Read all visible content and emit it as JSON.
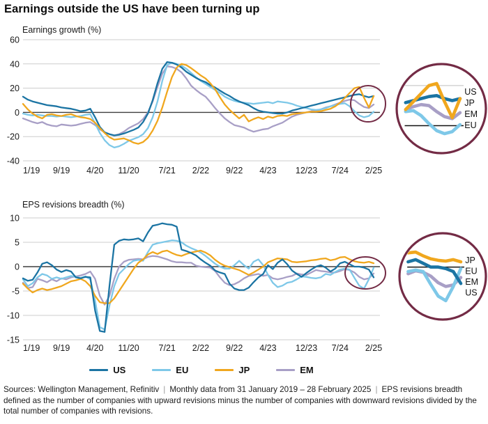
{
  "title": "Earnings outside the US have been turning up",
  "colors": {
    "us": "#1B74A3",
    "eu": "#7EC8E8",
    "jp": "#F0A71E",
    "em": "#A89FC6",
    "annotation_circle": "#732B45",
    "gridline": "#CCCCCC",
    "zero_line": "#3D3D3D",
    "text": "#1A1A1A"
  },
  "legend": {
    "items": [
      {
        "label": "US",
        "color": "#1B74A3"
      },
      {
        "label": "EU",
        "color": "#7EC8E8"
      },
      {
        "label": "JP",
        "color": "#F0A71E"
      },
      {
        "label": "EM",
        "color": "#A89FC6"
      }
    ]
  },
  "footer": {
    "sources": "Sources: Wellington Management, Refinitiv",
    "separator": "|",
    "period": "Monthly data from 31 January 2019 – 28 February 2025",
    "definition": "EPS revisions breadth defined as the number of companies with upward revisions minus the number of companies with downward revisions divided by the total number of companies with revisions."
  },
  "chart_data": [
    {
      "type": "line",
      "title": "Earnings growth (%)",
      "x_unit": "monthly, 1/19 through 2/25",
      "x_tick_labels": [
        "1/19",
        "9/19",
        "4/20",
        "11/20",
        "7/21",
        "2/22",
        "9/22",
        "4/23",
        "12/23",
        "7/24",
        "2/25"
      ],
      "x_tick_indices": [
        0,
        8,
        15,
        22,
        30,
        37,
        44,
        51,
        59,
        66,
        73
      ],
      "ylim": [
        -40,
        60
      ],
      "yticks": [
        60,
        40,
        20,
        0,
        -20,
        -40
      ],
      "grid": true,
      "legend_position": "shared-bottom",
      "end_label_order": [
        "US",
        "JP",
        "EM",
        "EU"
      ],
      "series": [
        {
          "name": "US",
          "color": "#1B74A3",
          "values": [
            13,
            10.5,
            9,
            8,
            7,
            6,
            5.5,
            5,
            4,
            3.5,
            3,
            2,
            1,
            1.5,
            3,
            -4,
            -12,
            -16.5,
            -18,
            -19,
            -18.5,
            -17.5,
            -16,
            -14.5,
            -12.5,
            -8,
            -1,
            10,
            24,
            36,
            41.5,
            41,
            39.5,
            37,
            33.5,
            31,
            28.5,
            26.5,
            25,
            22.5,
            20.5,
            18,
            15.5,
            13.5,
            11,
            9,
            7.5,
            6,
            3.5,
            1.5,
            0.5,
            0,
            -0.5,
            -1,
            -1,
            0,
            1.5,
            2.5,
            3.5,
            4.5,
            5.5,
            6.5,
            7.5,
            8.5,
            9.5,
            10.5,
            11.5,
            12.5,
            13.5,
            14.5,
            15,
            13.5,
            12.5,
            13.5
          ]
        },
        {
          "name": "EU",
          "color": "#7EC8E8",
          "values": [
            -1,
            -2,
            -2.5,
            -2,
            -2.5,
            -3,
            -3,
            -3.5,
            -3,
            -3.5,
            -4,
            -3.5,
            -3,
            -2,
            -1.5,
            -9,
            -17,
            -23,
            -27,
            -29,
            -28,
            -26,
            -23.5,
            -22,
            -20.5,
            -18,
            -13,
            -4,
            9,
            26,
            39,
            41,
            40,
            38.5,
            36,
            32.5,
            29,
            26,
            23.5,
            21,
            18.5,
            16,
            13,
            11,
            9.5,
            8.5,
            8,
            7.5,
            7,
            7.5,
            8,
            8.5,
            7.5,
            9,
            8.5,
            8,
            7,
            5.5,
            4.5,
            3.5,
            2.5,
            2,
            2.5,
            3.5,
            5,
            6,
            7,
            7.5,
            5,
            1,
            -2.5,
            -4,
            -3,
            0.5
          ]
        },
        {
          "name": "JP",
          "color": "#F0A71E",
          "values": [
            7,
            2.5,
            -1,
            -3.5,
            -5,
            -2,
            -1.5,
            -2.5,
            -3,
            -2,
            -1.5,
            -3,
            -4,
            -4.5,
            -5.5,
            -8.5,
            -13,
            -17,
            -20.5,
            -22.5,
            -22,
            -21.5,
            -23,
            -25,
            -26,
            -24.5,
            -21,
            -15,
            -7,
            4,
            17,
            29,
            37,
            40,
            39,
            36.5,
            33.5,
            30.5,
            28,
            24,
            19,
            12.5,
            6.5,
            2,
            -1.5,
            -5,
            -2,
            -7.5,
            -5.5,
            -4,
            -5.5,
            -3.5,
            -4.5,
            -3,
            -2.5,
            -3,
            -1.5,
            -1,
            -0.5,
            0,
            0.5,
            0.5,
            1,
            2,
            3,
            5,
            8,
            12,
            16,
            20,
            21,
            12,
            4,
            13.5
          ]
        },
        {
          "name": "EM",
          "color": "#A89FC6",
          "values": [
            -5,
            -6.5,
            -8,
            -9,
            -8,
            -10,
            -11,
            -11.5,
            -10,
            -10.5,
            -11,
            -10.5,
            -9.5,
            -8.5,
            -8,
            -10.5,
            -14,
            -16.5,
            -18,
            -19,
            -18,
            -16,
            -13,
            -11,
            -9,
            -5.5,
            0,
            9,
            21,
            32,
            38,
            37.5,
            36,
            33,
            28,
            22,
            18.5,
            15.5,
            13,
            8.5,
            3.5,
            -1,
            -5,
            -8,
            -10.5,
            -11.5,
            -12.5,
            -14.5,
            -16,
            -15,
            -14,
            -13.5,
            -11.5,
            -10,
            -8.5,
            -6,
            -3.5,
            -2,
            -1,
            0,
            1,
            1.5,
            2.5,
            4,
            5,
            6.5,
            8,
            9.5,
            10.5,
            10,
            7,
            4.5,
            3.5,
            6.5
          ]
        }
      ]
    },
    {
      "type": "line",
      "title": "EPS revisions breadth (%)",
      "x_unit": "monthly, 1/19 through 2/25",
      "x_tick_labels": [
        "1/19",
        "9/19",
        "4/20",
        "11/20",
        "7/21",
        "2/22",
        "9/22",
        "4/23",
        "12/23",
        "7/24",
        "2/25"
      ],
      "x_tick_indices": [
        0,
        8,
        15,
        22,
        30,
        37,
        44,
        51,
        59,
        66,
        73
      ],
      "ylim": [
        -15,
        10
      ],
      "yticks": [
        10,
        5,
        0,
        -5,
        -10,
        -15
      ],
      "grid": true,
      "legend_position": "shared-bottom",
      "end_label_order": [
        "JP",
        "EU",
        "EM",
        "US"
      ],
      "series": [
        {
          "name": "US",
          "color": "#1B74A3",
          "values": [
            -2.4,
            -2.9,
            -2.7,
            -1.2,
            0.6,
            0.9,
            0.3,
            -0.6,
            -1.1,
            -0.7,
            -1,
            -2.2,
            -2.4,
            -2.1,
            -2.2,
            -9,
            -13.2,
            -13.4,
            -4,
            4.5,
            5.3,
            5.6,
            5.5,
            5.6,
            5.8,
            5.2,
            7,
            8.4,
            8.6,
            8.9,
            8.7,
            8.6,
            8.2,
            3.5,
            3.2,
            2.8,
            2.3,
            1.5,
            0.8,
            0.2,
            -0.8,
            -1.2,
            -1.5,
            -3.5,
            -4.5,
            -4.8,
            -4.8,
            -4.3,
            -3.2,
            -2.2,
            -1.5,
            0.3,
            -0.5,
            0.8,
            1.5,
            0.5,
            -0.8,
            -1.5,
            -2.1,
            -1.3,
            -0.6,
            0,
            0.3,
            -0.2,
            -1,
            -0.4,
            0.7,
            1,
            0.5,
            0,
            0,
            -0.2,
            -0.6,
            -2.2
          ]
        },
        {
          "name": "EU",
          "color": "#7EC8E8",
          "values": [
            -2.6,
            -4,
            -3.4,
            -2.2,
            -1.5,
            -1.8,
            -2.5,
            -2.2,
            -2.5,
            -2.2,
            -1.9,
            -2.1,
            -2.3,
            -2,
            -2.6,
            -7,
            -12.4,
            -12.9,
            -8,
            -4,
            -1.5,
            -0.5,
            0.5,
            1.2,
            1.4,
            1.2,
            3,
            4.5,
            4.8,
            5,
            5.2,
            5.4,
            5.3,
            5,
            4.3,
            3.8,
            3.4,
            2.9,
            2.2,
            1.4,
            0.6,
            0,
            -0.4,
            -0.4,
            0.3,
            1.2,
            0.3,
            -0.4,
            1,
            1.5,
            0.3,
            -1.7,
            -3.3,
            -4.2,
            -3.9,
            -3.3,
            -3.1,
            -2.6,
            -2,
            -2.1,
            -2.3,
            -2.4,
            -2.2,
            -1.5,
            -1.7,
            -1.1,
            -0.6,
            -0.4,
            -0.6,
            -2.3,
            -3.9,
            -4.5,
            -2.6,
            -0.2
          ]
        },
        {
          "name": "JP",
          "color": "#F0A71E",
          "values": [
            -3.5,
            -4.5,
            -5.3,
            -4.8,
            -4.5,
            -4.8,
            -4.6,
            -4.3,
            -4,
            -3.5,
            -3,
            -2.8,
            -2.5,
            -3,
            -4,
            -6,
            -7.3,
            -7.5,
            -7.5,
            -6.5,
            -5,
            -3.5,
            -2,
            -0.5,
            0.8,
            1.5,
            2.5,
            3,
            2.6,
            3.1,
            3.3,
            2.8,
            2.4,
            2.2,
            2.6,
            2.9,
            3.1,
            3.3,
            2.9,
            2.3,
            1.4,
            0.7,
            0.2,
            -0.1,
            -0.4,
            -0.7,
            -1.2,
            -1.7,
            -1.2,
            -0.6,
            0,
            0.9,
            1.3,
            1.7,
            1.6,
            1.5,
            1,
            0.9,
            1,
            1.1,
            1.3,
            1.4,
            1.6,
            1.7,
            1.3,
            1.5,
            1.9,
            2,
            1.5,
            1.1,
            0.9,
            0.8,
            1,
            0.7
          ]
        },
        {
          "name": "EM",
          "color": "#A89FC6",
          "values": [
            -3.3,
            -4.4,
            -4.2,
            -2.5,
            -2.8,
            -3.2,
            -2.6,
            -3,
            -2.4,
            -2.6,
            -2.2,
            -2,
            -1.8,
            -1.5,
            -1,
            -2.5,
            -6,
            -7.8,
            -6,
            -2.5,
            0,
            1,
            1.4,
            1.5,
            1.6,
            1.5,
            2,
            2.2,
            2.1,
            1.8,
            1.5,
            1.1,
            0.9,
            0.9,
            0.8,
            0.8,
            0.2,
            0,
            -0.1,
            -0.2,
            -0.9,
            -2.2,
            -3.3,
            -3.8,
            -3.6,
            -3.1,
            -2.4,
            -1.9,
            -1.7,
            -1.5,
            -1.9,
            -1.7,
            -2.4,
            -2.6,
            -2.4,
            -2.1,
            -1.9,
            -1.4,
            -1.6,
            -1.7,
            -1.2,
            -0.7,
            -0.9,
            -1,
            -1.2,
            -1.2,
            -0.9,
            -0.5,
            -0.7,
            -1.2,
            -2.1,
            -2.6,
            -2.4,
            -1.4
          ]
        }
      ]
    }
  ]
}
